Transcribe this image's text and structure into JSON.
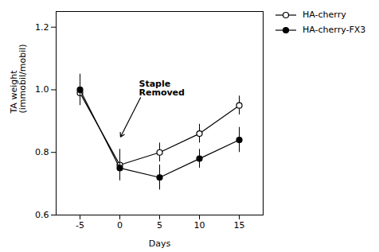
{
  "chart_data": {
    "type": "line",
    "xlabel": "Days",
    "ylabel": "TA weight\n(immobil/mobil)",
    "x": [
      -5,
      0,
      5,
      10,
      15
    ],
    "series": [
      {
        "name": "HA-cherry",
        "color": "#000000",
        "marker": "open_circle",
        "line_style": "solid",
        "values": [
          0.99,
          0.76,
          0.8,
          0.86,
          0.95
        ],
        "errors": [
          0.04,
          0.05,
          0.03,
          0.03,
          0.03
        ]
      },
      {
        "name": "HA-cherry-FX3",
        "color": "#000000",
        "marker": "circle",
        "line_style": "solid",
        "values": [
          1.0,
          0.75,
          0.72,
          0.78,
          0.84
        ],
        "errors": [
          0.05,
          0.04,
          0.04,
          0.03,
          0.04
        ]
      }
    ],
    "xlim": [
      -8,
      18
    ],
    "xticks": [
      -5,
      0,
      5,
      10,
      15
    ],
    "ylim": [
      0.6,
      1.25
    ],
    "yticks": [
      0.6,
      0.8,
      {
        "value": 1.0,
        "label": "1.0"
      },
      1.2
    ],
    "annotations": [
      {
        "text": "Staple\nRemoved",
        "x": 0,
        "y": 0.845
      }
    ],
    "legend": "right",
    "grid": false
  }
}
